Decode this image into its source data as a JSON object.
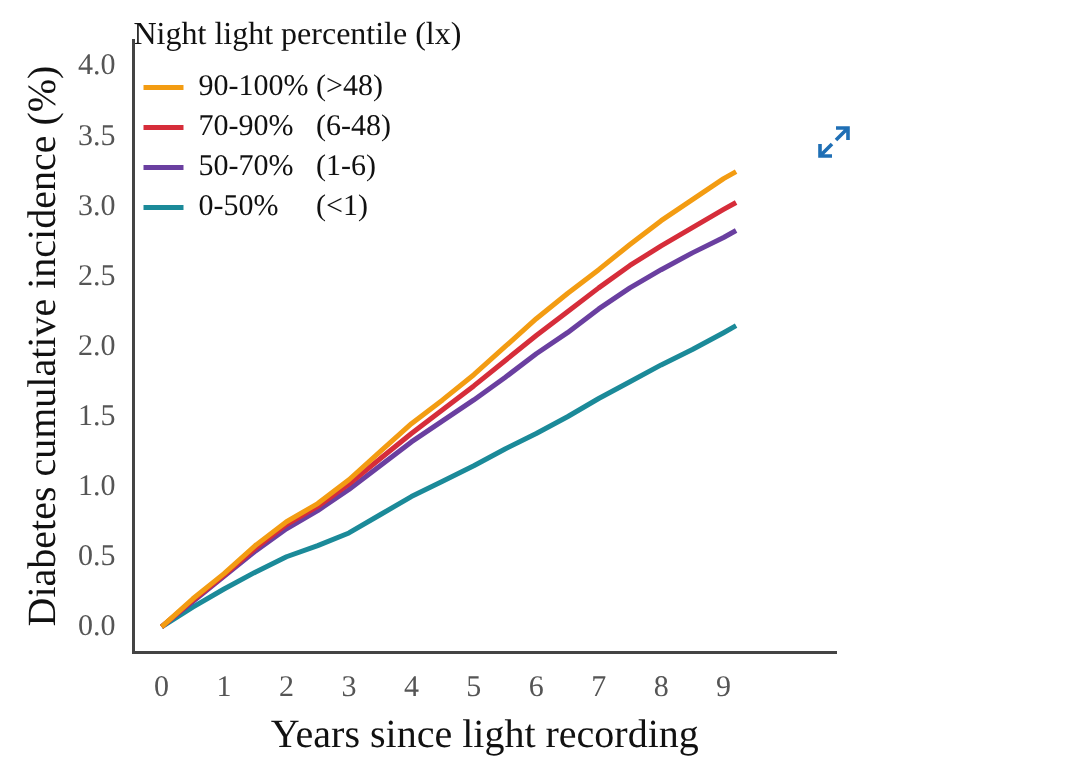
{
  "chart_data": {
    "type": "line",
    "xlabel": "Years since light recording",
    "ylabel": "Diabetes cumulative incidence (%)",
    "legend_title": "Night light percentile (lx)",
    "legend": "top left",
    "grid": false,
    "marker": "none",
    "line_style": "solid",
    "xlim": [
      -0.45,
      10.8
    ],
    "xticks": [
      0,
      1,
      2,
      3,
      4,
      5,
      6,
      7,
      8,
      9
    ],
    "ylim": [
      -0.18,
      4.19
    ],
    "yticks": [
      {
        "value": 0,
        "label": "0.0"
      },
      {
        "value": 0.5,
        "label": "0.5"
      },
      {
        "value": 1,
        "label": "1.0"
      },
      {
        "value": 1.5,
        "label": "1.5"
      },
      {
        "value": 2,
        "label": "2.0"
      },
      {
        "value": 2.5,
        "label": "2.5"
      },
      {
        "value": 3,
        "label": "3.0"
      },
      {
        "value": 3.5,
        "label": "3.5"
      },
      {
        "value": 4,
        "label": "4.0"
      }
    ],
    "x": [
      0,
      0.5,
      1,
      1.5,
      2,
      2.5,
      3,
      3.5,
      4,
      4.5,
      5,
      5.5,
      6,
      6.5,
      7,
      7.5,
      8,
      8.5,
      9,
      9.2
    ],
    "series": [
      {
        "name": "90-100% (>48)",
        "color": "#f39c12",
        "values": [
          0,
          0.2,
          0.38,
          0.58,
          0.75,
          0.88,
          1.05,
          1.25,
          1.45,
          1.62,
          1.8,
          2.0,
          2.2,
          2.38,
          2.55,
          2.73,
          2.9,
          3.05,
          3.2,
          3.25
        ]
      },
      {
        "name": "70-90%   (6-48)",
        "color": "#d62d3a",
        "values": [
          0,
          0.19,
          0.37,
          0.56,
          0.73,
          0.86,
          1.02,
          1.2,
          1.38,
          1.55,
          1.72,
          1.9,
          2.08,
          2.25,
          2.42,
          2.58,
          2.72,
          2.85,
          2.98,
          3.03
        ]
      },
      {
        "name": "50-70%   (1-6)",
        "color": "#6a3fa0",
        "values": [
          0,
          0.18,
          0.36,
          0.54,
          0.7,
          0.83,
          0.98,
          1.15,
          1.32,
          1.47,
          1.62,
          1.78,
          1.95,
          2.1,
          2.27,
          2.42,
          2.55,
          2.67,
          2.78,
          2.83
        ]
      },
      {
        "name": "0-50%     (<1)",
        "color": "#1b8a99",
        "values": [
          0,
          0.14,
          0.27,
          0.39,
          0.5,
          0.58,
          0.67,
          0.8,
          0.93,
          1.04,
          1.15,
          1.27,
          1.38,
          1.5,
          1.63,
          1.75,
          1.87,
          1.98,
          2.1,
          2.15
        ]
      }
    ]
  }
}
